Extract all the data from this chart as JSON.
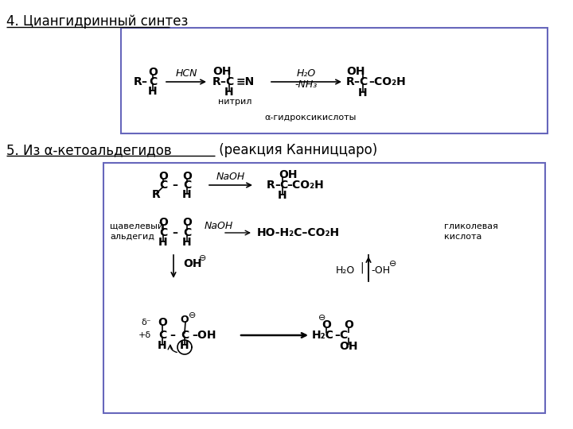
{
  "title1": "4. Циангидринный синтез",
  "title2_underlined": "5. Из α-кетоальдегидов",
  "title2_normal": " (реакция Канниццаро)",
  "bg_color": "#ffffff",
  "box_color": "#6666bb",
  "text_color": "#000000",
  "font_size_title": 12,
  "font_size_chem": 10,
  "font_size_small": 8,
  "font_size_label": 8
}
